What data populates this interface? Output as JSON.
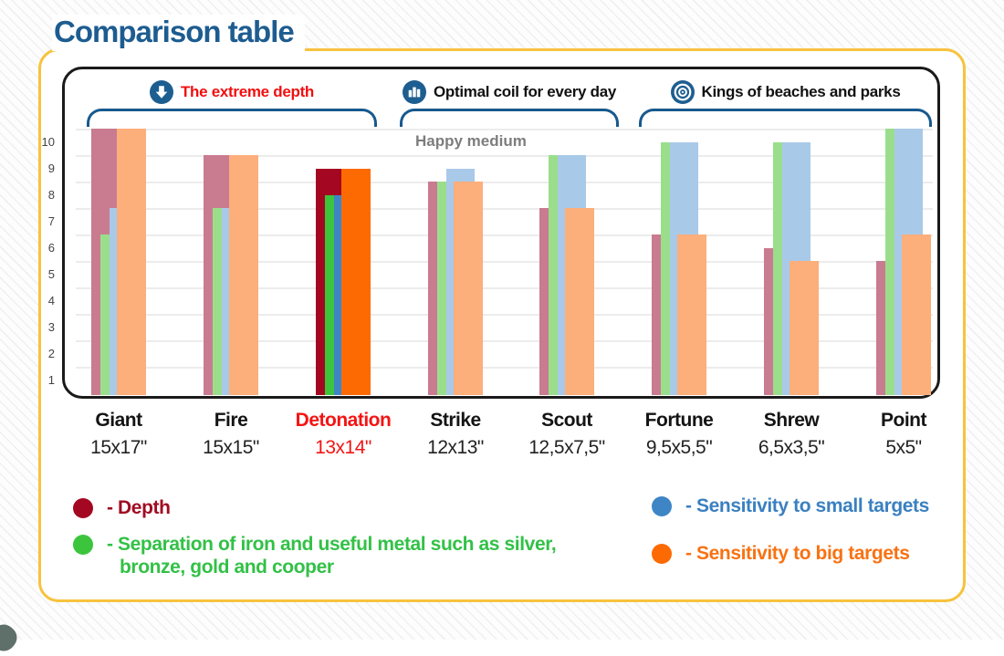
{
  "title": "Comparison table",
  "annotation": "Happy medium",
  "categories": [
    {
      "label": "The extreme depth",
      "icon": "arrow-down-circle-icon",
      "color": "#f20f0f",
      "products": [
        "Giant",
        "Fire",
        "Detonation"
      ]
    },
    {
      "label": "Optimal coil for every day",
      "icon": "bar-chart-circle-icon",
      "color": "#111111",
      "products": [
        "Strike",
        "Scout"
      ]
    },
    {
      "label": "Kings of beaches and parks",
      "icon": "target-icon",
      "color": "#111111",
      "products": [
        "Fortune",
        "Shrew",
        "Point"
      ]
    }
  ],
  "chart_data": {
    "type": "bar",
    "categories": [
      "Giant",
      "Fire",
      "Detonation",
      "Strike",
      "Scout",
      "Fortune",
      "Shrew",
      "Point"
    ],
    "sizes": [
      "15x17\"",
      "15x15\"",
      "13x14\"",
      "12x13\"",
      "12,5x7,5\"",
      "9,5x5,5\"",
      "6,5x3,5\"",
      "5x5\""
    ],
    "highlighted": "Detonation",
    "highlighted_index": 2,
    "highlight_label_color": "#f41414",
    "yticks": [
      10,
      9,
      8,
      7,
      6,
      5,
      4,
      3,
      2,
      1
    ],
    "ylim": [
      0,
      10.5
    ],
    "grid": true,
    "legend_position": "bottom",
    "series": [
      {
        "name": "Depth",
        "color_muted": "#c97b90",
        "color_highlight": "#a40721",
        "values": [
          10.5,
          9.5,
          9,
          8.5,
          7.5,
          6.5,
          6,
          5.5
        ]
      },
      {
        "name": "Separation of iron and useful metal such as silver, bronze, gold and cooper",
        "color_muted": "#9ade8c",
        "color_highlight": "#3cc53c",
        "values": [
          6.5,
          7.5,
          8,
          8.5,
          9.5,
          10,
          10,
          10.5
        ]
      },
      {
        "name": "Sensitivity to small targets",
        "color_muted": "#a9c9e9",
        "color_highlight": "#3e85c6",
        "values": [
          7.5,
          7.5,
          8,
          9,
          9.5,
          10,
          10,
          10.5
        ]
      },
      {
        "name": "Sensitivity to big targets",
        "color_muted": "#fcae7b",
        "color_highlight": "#fd6a02",
        "values": [
          10.5,
          9.5,
          9,
          8.5,
          7.5,
          6.5,
          5.5,
          6.5
        ]
      }
    ]
  },
  "legend": [
    {
      "label": "- Depth",
      "dot_color": "#a40721",
      "text_color": "#a00d22",
      "column": "left"
    },
    {
      "label": "- Separation of iron and useful metal such as silver, bronze, gold and cooper",
      "dot_color": "#3cc53c",
      "text_color": "#32c146",
      "column": "left"
    },
    {
      "label": "- Sensitivity to small targets",
      "dot_color": "#3e85c6",
      "text_color": "#3a80c0",
      "column": "right"
    },
    {
      "label": "- Sensitivity to big targets",
      "dot_color": "#fd6a02",
      "text_color": "#f87212",
      "column": "right"
    }
  ],
  "colors": {
    "accent_blue": "#1d5e91",
    "card_border": "#f7c23d",
    "panel_border": "#1a1a1a",
    "gridline": "#ececec",
    "axis_text": "#444444"
  }
}
